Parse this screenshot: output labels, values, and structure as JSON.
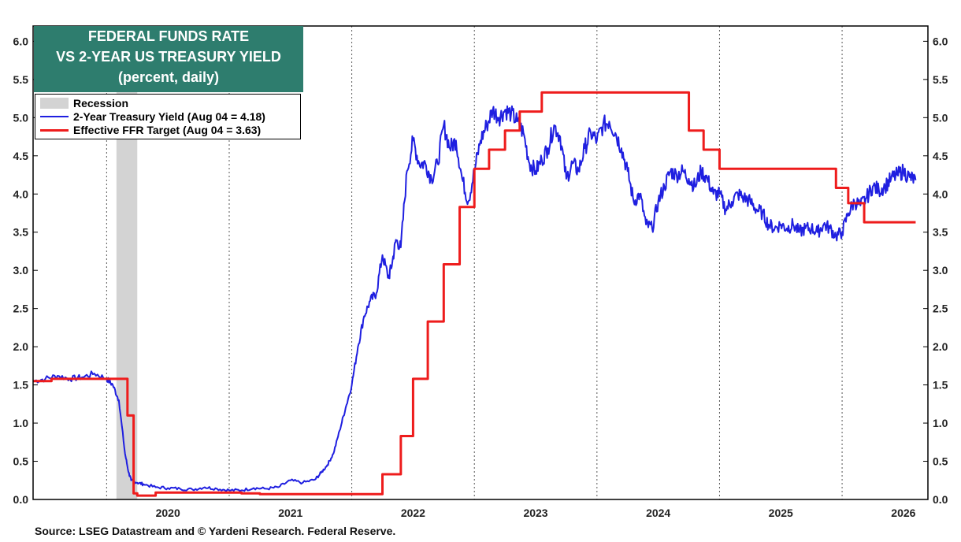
{
  "title_lines": [
    "FEDERAL FUNDS RATE",
    "VS 2-YEAR US TREASURY YIELD",
    "(percent, daily)"
  ],
  "legend": {
    "recession": "Recession",
    "treasury": "2-Year Treasury Yield (Aug 04 = 4.18)",
    "ffr": "Effective FFR Target (Aug 04 = 3.63)"
  },
  "source": "Source: LSEG Datastream and © Yardeni Research. Federal Reserve.",
  "colors": {
    "treasury": "#1f1fe0",
    "ffr": "#ee1c1c",
    "recession": "#d3d3d3",
    "title_bg": "#2e7d6e"
  },
  "chart_data": {
    "type": "line",
    "ylim": [
      0,
      6.2
    ],
    "xlim": [
      2019.4,
      2026.7
    ],
    "y_ticks": [
      "0.0",
      "0.5",
      "1.0",
      "1.5",
      "2.0",
      "2.5",
      "3.0",
      "3.5",
      "4.0",
      "4.5",
      "5.0",
      "5.5",
      "6.0"
    ],
    "x_year_labels": [
      "2020",
      "2021",
      "2022",
      "2023",
      "2024",
      "2025",
      "2026"
    ],
    "recession": [
      2020.08,
      2020.25
    ],
    "series": [
      {
        "name": "2-Year Treasury Yield (Aug 04 = 4.18)",
        "key": "treasury",
        "x": [
          2019.4,
          2019.5,
          2019.6,
          2019.7,
          2019.8,
          2019.9,
          2020.0,
          2020.05,
          2020.1,
          2020.15,
          2020.18,
          2020.2,
          2020.25,
          2020.3,
          2020.4,
          2020.5,
          2020.6,
          2020.7,
          2020.8,
          2020.9,
          2021.0,
          2021.1,
          2021.2,
          2021.3,
          2021.4,
          2021.5,
          2021.6,
          2021.7,
          2021.75,
          2021.8,
          2021.85,
          2021.9,
          2021.95,
          2022.0,
          2022.05,
          2022.1,
          2022.15,
          2022.2,
          2022.25,
          2022.3,
          2022.33,
          2022.36,
          2022.4,
          2022.45,
          2022.5,
          2022.55,
          2022.6,
          2022.65,
          2022.7,
          2022.75,
          2022.8,
          2022.85,
          2022.9,
          2022.95,
          2023.0,
          2023.05,
          2023.1,
          2023.15,
          2023.2,
          2023.25,
          2023.3,
          2023.35,
          2023.4,
          2023.45,
          2023.5,
          2023.55,
          2023.6,
          2023.65,
          2023.7,
          2023.75,
          2023.8,
          2023.85,
          2023.9,
          2023.95,
          2024.0,
          2024.05,
          2024.1,
          2024.15,
          2024.2,
          2024.25,
          2024.3,
          2024.35,
          2024.4,
          2024.45,
          2024.5,
          2024.55,
          2024.6,
          2024.65,
          2024.7,
          2024.75,
          2024.8,
          2024.85,
          2024.9,
          2024.95,
          2025.0,
          2025.05,
          2025.1,
          2025.15,
          2025.2,
          2025.25,
          2025.3,
          2025.35,
          2025.4,
          2025.45,
          2025.5,
          2025.55,
          2025.6,
          2025.65,
          2025.7,
          2025.75,
          2025.8,
          2025.85,
          2025.9,
          2025.95,
          2026.0,
          2026.05,
          2026.1,
          2026.15,
          2026.2,
          2026.25,
          2026.3,
          2026.35,
          2026.4,
          2026.45,
          2026.5,
          2026.55,
          2026.6
        ],
        "y": [
          1.55,
          1.58,
          1.62,
          1.58,
          1.6,
          1.65,
          1.58,
          1.5,
          1.3,
          0.6,
          0.35,
          0.25,
          0.22,
          0.2,
          0.16,
          0.15,
          0.14,
          0.13,
          0.16,
          0.14,
          0.12,
          0.12,
          0.15,
          0.14,
          0.16,
          0.25,
          0.22,
          0.26,
          0.35,
          0.45,
          0.6,
          0.9,
          1.2,
          1.5,
          2.0,
          2.4,
          2.6,
          2.7,
          3.2,
          2.9,
          3.1,
          3.4,
          3.3,
          4.3,
          4.7,
          4.4,
          4.4,
          4.2,
          4.4,
          4.9,
          4.6,
          4.7,
          4.2,
          3.9,
          4.3,
          4.7,
          4.9,
          5.1,
          5.0,
          5.1,
          5.05,
          4.95,
          4.8,
          4.4,
          4.3,
          4.45,
          4.6,
          4.9,
          4.75,
          4.2,
          4.4,
          4.3,
          4.6,
          4.8,
          4.7,
          4.9,
          4.95,
          4.8,
          4.6,
          4.3,
          3.9,
          4.0,
          3.6,
          3.55,
          3.9,
          4.1,
          4.3,
          4.25,
          4.3,
          4.2,
          4.1,
          4.3,
          4.2,
          4.0,
          4.0,
          3.8,
          3.9,
          4.0,
          3.95,
          3.9,
          3.8,
          3.75,
          3.6,
          3.55,
          3.6,
          3.55,
          3.6,
          3.5,
          3.55,
          3.55,
          3.5,
          3.6,
          3.55,
          3.45,
          3.5,
          3.75,
          3.9,
          3.85,
          3.95,
          4.1,
          4.05,
          4.1,
          4.2,
          4.25,
          4.3,
          4.22,
          4.18
        ]
      },
      {
        "name": "Effective FFR Target (Aug 04 = 3.63)",
        "key": "ffr",
        "steps": [
          [
            2019.4,
            1.55
          ],
          [
            2019.55,
            1.58
          ],
          [
            2020.17,
            1.1
          ],
          [
            2020.22,
            0.08
          ],
          [
            2020.25,
            0.05
          ],
          [
            2020.4,
            0.09
          ],
          [
            2021.1,
            0.08
          ],
          [
            2021.25,
            0.07
          ],
          [
            2022.25,
            0.33
          ],
          [
            2022.4,
            0.83
          ],
          [
            2022.5,
            1.58
          ],
          [
            2022.62,
            2.33
          ],
          [
            2022.75,
            3.08
          ],
          [
            2022.88,
            3.83
          ],
          [
            2023.0,
            4.33
          ],
          [
            2023.12,
            4.58
          ],
          [
            2023.25,
            4.83
          ],
          [
            2023.37,
            5.08
          ],
          [
            2023.55,
            5.33
          ],
          [
            2024.75,
            4.83
          ],
          [
            2024.87,
            4.58
          ],
          [
            2025.0,
            4.33
          ],
          [
            2025.95,
            4.08
          ],
          [
            2026.05,
            3.88
          ],
          [
            2026.18,
            3.63
          ],
          [
            2026.6,
            3.63
          ]
        ]
      }
    ]
  }
}
